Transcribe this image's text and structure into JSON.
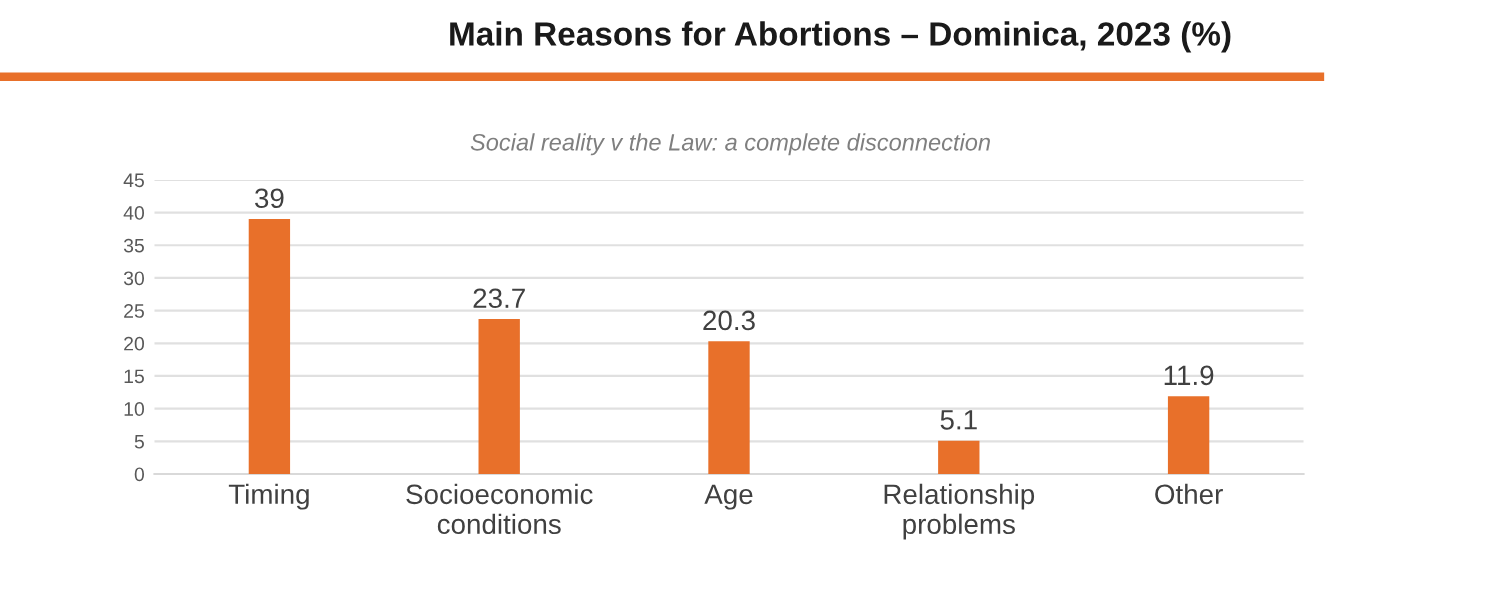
{
  "chart_data": {
    "type": "bar",
    "title": "Main Reasons for Abortions – Dominica, 2023 (%)",
    "subtitle": "Social reality v the Law: a complete disconnection",
    "categories": [
      "Timing",
      "Socioeconomic\nconditions",
      "Age",
      "Relationship\nproblems",
      "Other"
    ],
    "values": [
      39,
      23.7,
      20.3,
      5.1,
      11.9
    ],
    "color": "#e8702a",
    "ylim": [
      0,
      45
    ],
    "yticks": [
      0,
      5,
      10,
      15,
      20,
      25,
      30,
      35,
      40,
      45
    ],
    "grid": "y",
    "data_labels": true
  }
}
